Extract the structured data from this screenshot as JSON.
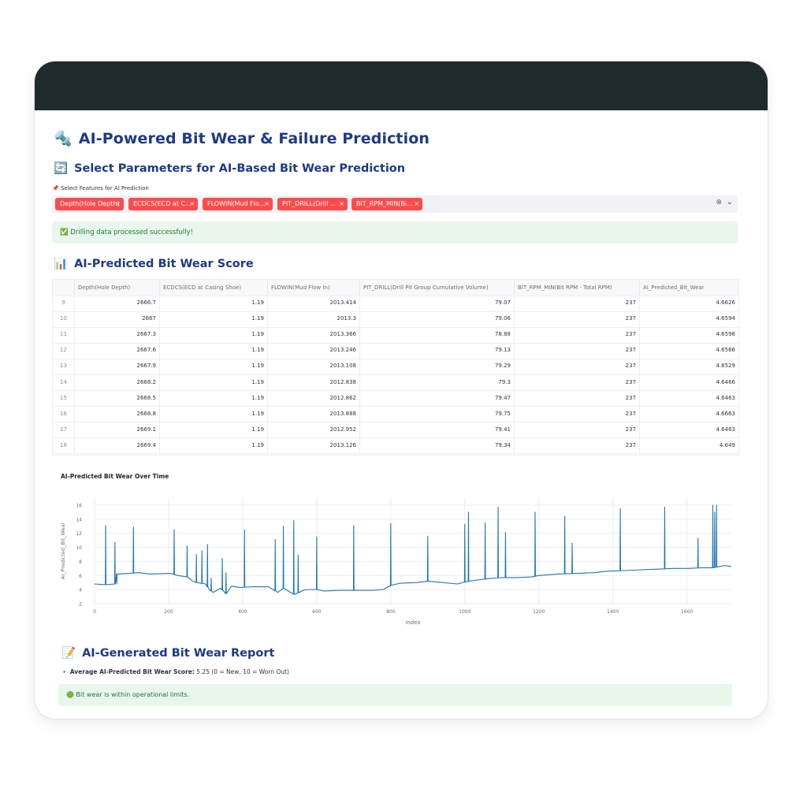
{
  "page": {
    "title": "AI-Powered Bit Wear & Failure Prediction",
    "title_icon": "🔩",
    "section_select": "Select Parameters for AI-Based Bit Wear Prediction",
    "section_select_icon": "🔄",
    "feature_label": "Select Features for AI Prediction",
    "feature_label_icon": "📌",
    "selected_features": [
      "Depth(Hole Depth)",
      "ECDCS(ECD at C...",
      "FLOWIN(Mud Flo...",
      "PIT_DRILL(Drill ...",
      "BIT_RPM_MIN(Bi..."
    ],
    "success_icon": "✅",
    "success_message": "Drilling data processed successfully!",
    "section_predicted": "AI-Predicted Bit Wear Score",
    "section_predicted_icon": "📊",
    "section_report": "AI-Generated Bit Wear Report",
    "section_report_icon": "📝",
    "report_bullet_icon": "🔹",
    "report_label": "Average AI-Predicted Bit Wear Score:",
    "report_value": " 5.25 (0 = New, 10 = Worn Out)",
    "status_icon": "🟢",
    "status_message": "Bit wear is within operational limits."
  },
  "table": {
    "columns": [
      "",
      "Depth(Hole Depth)",
      "ECDCS(ECD at Casing Shoe)",
      "FLOWIN(Mud Flow In)",
      "PIT_DRILL(Drill Pit Group Cumulative Volume)",
      "BIT_RPM_MIN(Bit RPM - Total RPM)",
      "AI_Predicted_Bit_Wear"
    ],
    "rows": [
      [
        "9",
        "2666.7",
        "1.19",
        "2013.414",
        "79.07",
        "237",
        "4.6626"
      ],
      [
        "10",
        "2667",
        "1.19",
        "2013.3",
        "79.06",
        "237",
        "4.6594"
      ],
      [
        "11",
        "2667.3",
        "1.19",
        "2013.366",
        "78.88",
        "237",
        "4.6598"
      ],
      [
        "12",
        "2667.6",
        "1.19",
        "2013.246",
        "79.13",
        "237",
        "4.6566"
      ],
      [
        "13",
        "2667.9",
        "1.19",
        "2013.108",
        "79.29",
        "237",
        "4.6529"
      ],
      [
        "14",
        "2668.2",
        "1.19",
        "2012.838",
        "79.3",
        "237",
        "4.6466"
      ],
      [
        "15",
        "2668.5",
        "1.19",
        "2012.862",
        "79.47",
        "237",
        "4.6463"
      ],
      [
        "16",
        "2668.8",
        "1.19",
        "2013.888",
        "79.75",
        "237",
        "4.6663"
      ],
      [
        "17",
        "2669.1",
        "1.19",
        "2012.952",
        "79.41",
        "237",
        "4.6463"
      ],
      [
        "18",
        "2669.4",
        "1.19",
        "2013.126",
        "79.34",
        "237",
        "4.649"
      ]
    ]
  },
  "chart_data": {
    "type": "line",
    "title": "AI-Predicted Bit Wear Over Time",
    "xlabel": "index",
    "ylabel": "AI_Predicted_Bit_Wear",
    "xlim": [
      0,
      1720
    ],
    "ylim": [
      2,
      17
    ],
    "xticks": [
      0,
      200,
      400,
      600,
      800,
      1000,
      1200,
      1400,
      1600
    ],
    "yticks": [
      2,
      4,
      6,
      8,
      10,
      12,
      14,
      16
    ],
    "grid": true,
    "line_color": "#1f77b4",
    "baseline": [
      [
        0,
        4.8
      ],
      [
        30,
        4.7
      ],
      [
        55,
        4.8
      ],
      [
        60,
        6.2
      ],
      [
        120,
        6.4
      ],
      [
        150,
        6.2
      ],
      [
        205,
        6.3
      ],
      [
        225,
        6.0
      ],
      [
        250,
        5.8
      ],
      [
        265,
        5.2
      ],
      [
        275,
        5.0
      ],
      [
        300,
        4.8
      ],
      [
        310,
        4.0
      ],
      [
        320,
        3.6
      ],
      [
        340,
        4.2
      ],
      [
        355,
        3.4
      ],
      [
        370,
        4.5
      ],
      [
        390,
        4.3
      ],
      [
        430,
        4.4
      ],
      [
        470,
        4.4
      ],
      [
        495,
        3.6
      ],
      [
        510,
        4.2
      ],
      [
        540,
        3.3
      ],
      [
        560,
        3.8
      ],
      [
        570,
        4.0
      ],
      [
        600,
        4.0
      ],
      [
        620,
        3.8
      ],
      [
        660,
        3.9
      ],
      [
        700,
        3.9
      ],
      [
        750,
        3.9
      ],
      [
        780,
        4.0
      ],
      [
        800,
        4.6
      ],
      [
        825,
        4.9
      ],
      [
        870,
        5.0
      ],
      [
        900,
        5.2
      ],
      [
        940,
        5.0
      ],
      [
        980,
        4.8
      ],
      [
        1010,
        5.2
      ],
      [
        1040,
        5.4
      ],
      [
        1070,
        5.6
      ],
      [
        1100,
        5.7
      ],
      [
        1140,
        5.7
      ],
      [
        1180,
        5.8
      ],
      [
        1200,
        6.0
      ],
      [
        1250,
        6.2
      ],
      [
        1300,
        6.3
      ],
      [
        1350,
        6.4
      ],
      [
        1380,
        6.6
      ],
      [
        1430,
        6.7
      ],
      [
        1470,
        6.8
      ],
      [
        1520,
        6.9
      ],
      [
        1560,
        7.0
      ],
      [
        1600,
        7.0
      ],
      [
        1640,
        7.1
      ],
      [
        1670,
        7.1
      ],
      [
        1700,
        7.4
      ],
      [
        1720,
        7.3
      ]
    ],
    "spikes": [
      [
        30,
        13.1
      ],
      [
        55,
        10.7
      ],
      [
        60,
        4.8
      ],
      [
        105,
        12.9
      ],
      [
        215,
        12.5
      ],
      [
        250,
        10.2
      ],
      [
        275,
        9.0
      ],
      [
        290,
        9.5
      ],
      [
        305,
        10.4
      ],
      [
        315,
        5.6
      ],
      [
        345,
        8.4
      ],
      [
        355,
        6.4
      ],
      [
        405,
        12.5
      ],
      [
        488,
        11.1
      ],
      [
        510,
        13.0
      ],
      [
        538,
        13.8
      ],
      [
        550,
        8.9
      ],
      [
        600,
        11.5
      ],
      [
        700,
        13.1
      ],
      [
        800,
        13.4
      ],
      [
        900,
        11.6
      ],
      [
        1000,
        13.3
      ],
      [
        1010,
        15.0
      ],
      [
        1055,
        13.5
      ],
      [
        1090,
        15.7
      ],
      [
        1110,
        12.1
      ],
      [
        1190,
        15.0
      ],
      [
        1270,
        14.4
      ],
      [
        1290,
        10.6
      ],
      [
        1420,
        15.5
      ],
      [
        1540,
        15.7
      ],
      [
        1630,
        11.3
      ],
      [
        1675,
        15.0
      ],
      [
        1670,
        16.0
      ],
      [
        1680,
        16.0
      ]
    ]
  }
}
